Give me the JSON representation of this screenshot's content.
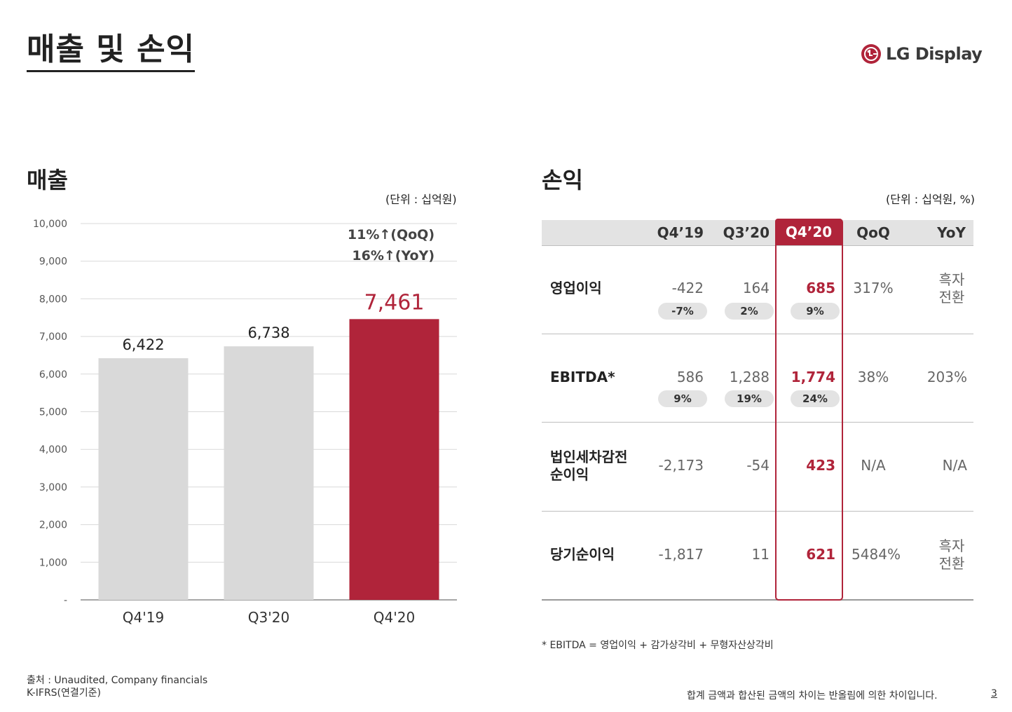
{
  "page_title": "매출 및 손익",
  "logo": {
    "text": "LG Display",
    "brand_color": "#b0243a"
  },
  "revenue": {
    "title": "매출",
    "unit": "(단위 : 십억원)",
    "growth_qoq": "11%↑(QoQ)",
    "growth_yoy": "16%↑(YoY)"
  },
  "chart_data": {
    "type": "bar",
    "title": "매출",
    "categories": [
      "Q4'19",
      "Q3'20",
      "Q4'20"
    ],
    "values": [
      6422,
      6738,
      7461
    ],
    "value_labels": [
      "6,422",
      "6,738",
      "7,461"
    ],
    "ylim": [
      0,
      10000
    ],
    "y_ticks": [
      "-",
      "1,000",
      "2,000",
      "3,000",
      "4,000",
      "5,000",
      "6,000",
      "7,000",
      "8,000",
      "9,000",
      "10,000"
    ],
    "colors": [
      "#d9d9d9",
      "#d9d9d9",
      "#b0243a"
    ],
    "grid": true
  },
  "pl": {
    "title": "손익",
    "unit": "(단위 : 십억원, %)",
    "headers": [
      "Q4’19",
      "Q3’20",
      "Q4’20",
      "QoQ",
      "YoY"
    ],
    "rows": [
      {
        "label": "영업이익",
        "values": [
          "-422",
          "164",
          "685",
          "317%"
        ],
        "yoy": "흑자 전환",
        "yoy_line1": "흑자",
        "yoy_line2": "전환",
        "margins": [
          "-7%",
          "2%",
          "9%"
        ]
      },
      {
        "label": "EBITDA*",
        "values": [
          "586",
          "1,288",
          "1,774",
          "38%"
        ],
        "yoy": "203%",
        "margins": [
          "9%",
          "19%",
          "24%"
        ]
      },
      {
        "label": "법인세차감전 순이익",
        "label_line1": "법인세차감전",
        "label_line2": "순이익",
        "values": [
          "-2,173",
          "-54",
          "423",
          "N/A"
        ],
        "yoy": "N/A"
      },
      {
        "label": "당기순이익",
        "values": [
          "-1,817",
          "11",
          "621",
          "5484%"
        ],
        "yoy": "흑자 전환",
        "yoy_line1": "흑자",
        "yoy_line2": "전환"
      }
    ],
    "footnote": "* EBITDA = 영업이익 + 감가상각비 + 무형자산상각비"
  },
  "footer": {
    "source_line1": "출처 : Unaudited, Company financials",
    "source_line2": "K-IFRS(연결기준)",
    "rounding_note": "합계 금액과 합산된 금액의 차이는 반올림에 의한 차이입니다.",
    "page_number": "3"
  }
}
